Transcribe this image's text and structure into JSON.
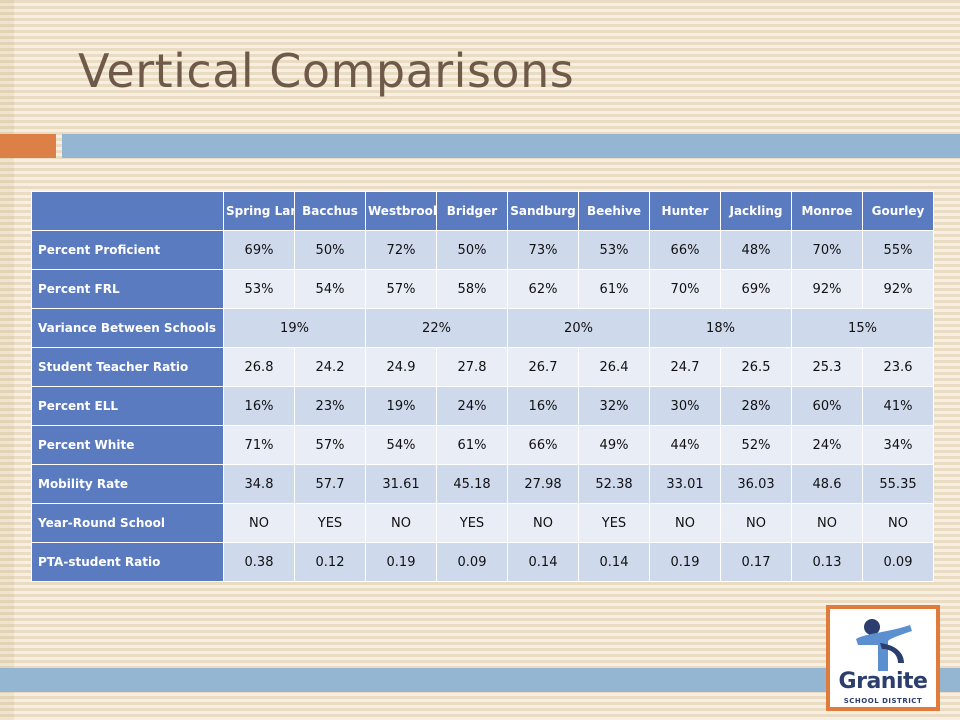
{
  "slide": {
    "title": "Vertical Comparisons"
  },
  "table": {
    "schools": [
      "Spring Lane",
      "Bacchus",
      "Westbrook",
      "Bridger",
      "Sandburg",
      "Beehive",
      "Hunter",
      "Jackling",
      "Monroe",
      "Gourley"
    ],
    "rows": [
      {
        "label": "Percent Proficient",
        "cells": [
          "69%",
          "50%",
          "72%",
          "50%",
          "73%",
          "53%",
          "66%",
          "48%",
          "70%",
          "55%"
        ]
      },
      {
        "label": "Percent FRL",
        "cells": [
          "53%",
          "54%",
          "57%",
          "58%",
          "62%",
          "61%",
          "70%",
          "69%",
          "92%",
          "92%"
        ]
      },
      {
        "label": "Variance Between Schools",
        "cells": [
          "19%",
          "22%",
          "20%",
          "18%",
          "15%"
        ]
      },
      {
        "label": "Student Teacher Ratio",
        "cells": [
          "26.8",
          "24.2",
          "24.9",
          "27.8",
          "26.7",
          "26.4",
          "24.7",
          "26.5",
          "25.3",
          "23.6"
        ]
      },
      {
        "label": "Percent ELL",
        "cells": [
          "16%",
          "23%",
          "19%",
          "24%",
          "16%",
          "32%",
          "30%",
          "28%",
          "60%",
          "41%"
        ]
      },
      {
        "label": "Percent White",
        "cells": [
          "71%",
          "57%",
          "54%",
          "61%",
          "66%",
          "49%",
          "44%",
          "52%",
          "24%",
          "34%"
        ]
      },
      {
        "label": "Mobility Rate",
        "cells": [
          "34.8",
          "57.7",
          "31.61",
          "45.18",
          "27.98",
          "52.38",
          "33.01",
          "36.03",
          "48.6",
          "55.35"
        ]
      },
      {
        "label": "Year-Round School",
        "cells": [
          "NO",
          "YES",
          "NO",
          "YES",
          "NO",
          "YES",
          "NO",
          "NO",
          "NO",
          "NO"
        ]
      },
      {
        "label": "PTA-student Ratio",
        "cells": [
          "0.38",
          "0.12",
          "0.19",
          "0.09",
          "0.14",
          "0.14",
          "0.19",
          "0.17",
          "0.13",
          "0.09"
        ]
      }
    ]
  },
  "logo": {
    "name": "Granite",
    "subtitle": "SCHOOL DISTRICT",
    "colors": {
      "blue": "#2c3e6e",
      "light_blue": "#5b8fd0",
      "border": "#e07b3c"
    }
  }
}
